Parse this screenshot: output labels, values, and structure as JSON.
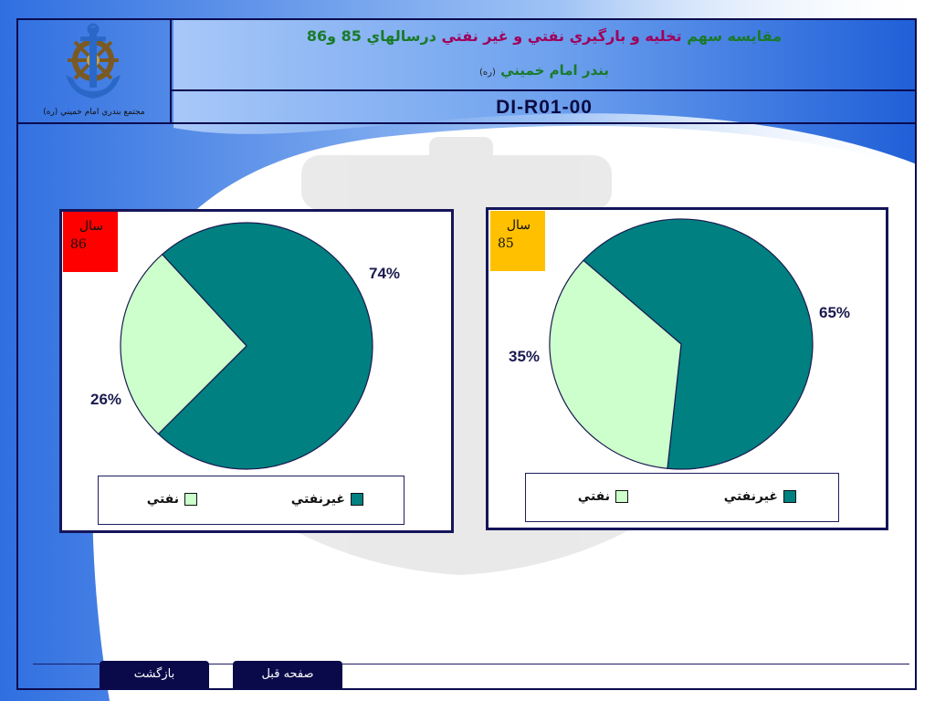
{
  "header": {
    "title_line1_prefix": "مقايسه سهم",
    "title_line1_highlight": "تخليه و بارگيري نفتي و غير نفتي",
    "title_line1_suffix": "درسالهاي 85 و86",
    "title_line2": "بندر امام خميني",
    "title_line2_small": "(ره)",
    "doc_code": "DI-R01-00",
    "logo_caption": "مجتمع بندري امام خميني (ره)"
  },
  "colors": {
    "oil": "#ccffcc",
    "non_oil": "#008080",
    "badge_86": "#ff0000",
    "badge_85": "#ffc000",
    "frame": "#0b0b4f",
    "nav_button": "#0a0a4a"
  },
  "legend": {
    "oil_label": "نفتي",
    "non_oil_label": "غيرنفتي"
  },
  "nav": {
    "back_label": "بازگشت",
    "prev_label": "صفحه قبل"
  },
  "chart_data": [
    {
      "type": "pie",
      "year_label": "سال",
      "year_value": "86",
      "categories": [
        "غيرنفتي",
        "نفتي"
      ],
      "values": [
        74,
        26
      ],
      "labels": [
        "74%",
        "26%"
      ],
      "legend_placement": "bottom"
    },
    {
      "type": "pie",
      "year_label": "سال",
      "year_value": "85",
      "categories": [
        "غيرنفتي",
        "نفتي"
      ],
      "values": [
        65,
        35
      ],
      "labels": [
        "65%",
        "35%"
      ],
      "legend_placement": "bottom"
    }
  ]
}
